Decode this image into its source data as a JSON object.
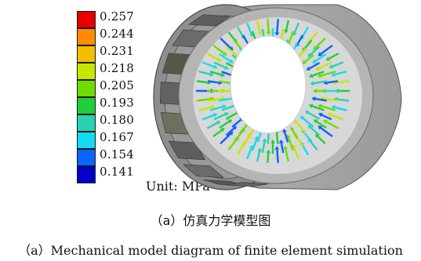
{
  "legend": {
    "values": [
      "0.257",
      "0.244",
      "0.231",
      "0.218",
      "0.205",
      "0.193",
      "0.180",
      "0.167",
      "0.154",
      "0.141"
    ],
    "colors": [
      "#e60000",
      "#ff8c00",
      "#f0c000",
      "#c8e600",
      "#6edc00",
      "#1fcf3c",
      "#28d2b4",
      "#14dcf0",
      "#0a64ff",
      "#0000c8"
    ]
  },
  "unit_label": "Unit: MPa",
  "caption_cn": "（a）仿真力学模型图",
  "caption_en": "（a）Mechanical model diagram of finite element simulation",
  "arrow_colors": [
    "#1fcf3c",
    "#28d2b4",
    "#14dcf0",
    "#c8e600",
    "#6edc00",
    "#0a64ff"
  ]
}
